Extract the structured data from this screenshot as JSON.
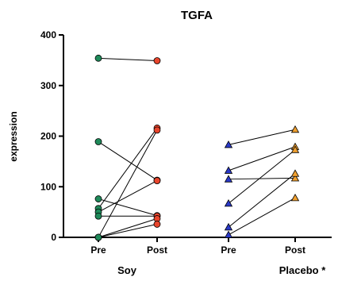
{
  "chart_data": {
    "type": "scatter",
    "title": "TGFA",
    "ylabel": "expression",
    "xlabel": "",
    "ylim": [
      0,
      400
    ],
    "yticks": [
      0,
      100,
      200,
      300,
      400
    ],
    "x_ticks": [
      "Pre",
      "Post",
      "Pre",
      "Post"
    ],
    "groups": [
      {
        "label": "Soy",
        "pre_color": "#1f8a5a",
        "post_color": "#e8452c",
        "marker": "circle",
        "pairs": [
          {
            "pre": 354,
            "post": 349
          },
          {
            "pre": 189,
            "post": 113
          },
          {
            "pre": 76,
            "post": 43
          },
          {
            "pre": 57,
            "post": 216
          },
          {
            "pre": 50,
            "post": 112
          },
          {
            "pre": 42,
            "post": 42
          },
          {
            "pre": 0,
            "post": 212
          },
          {
            "pre": 0,
            "post": 37
          },
          {
            "pre": 0,
            "post": 26
          }
        ]
      },
      {
        "label": "Placebo *",
        "pre_color": "#2a39c8",
        "post_color": "#f0a030",
        "marker": "triangle",
        "pairs": [
          {
            "pre": 183,
            "post": 213
          },
          {
            "pre": 132,
            "post": 179
          },
          {
            "pre": 115,
            "post": 117
          },
          {
            "pre": 67,
            "post": 173
          },
          {
            "pre": 20,
            "post": 126
          },
          {
            "pre": 5,
            "post": 78
          }
        ]
      }
    ]
  }
}
